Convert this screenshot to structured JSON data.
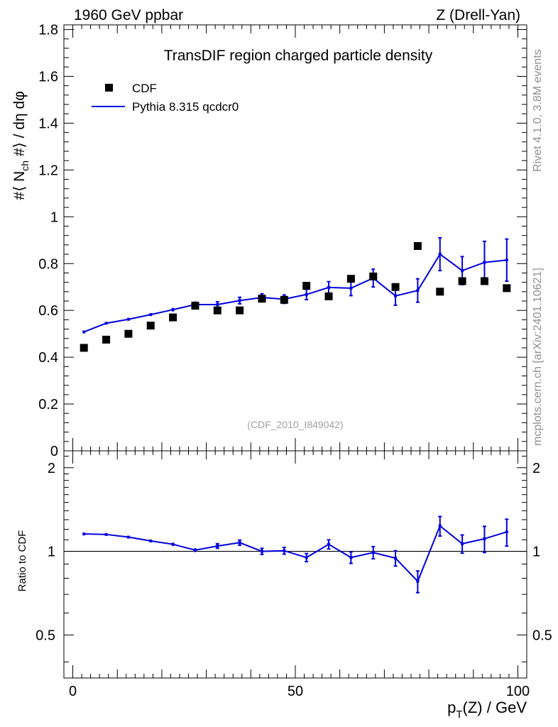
{
  "header": {
    "left": "1960 GeV ppbar",
    "right": "Z (Drell-Yan)"
  },
  "side": {
    "rivet": "Rivet 4.1.0,  3.8M events",
    "mcplots": "mcplots.cern.ch [arXiv:2401.10621]"
  },
  "chart_data": {
    "type": "line",
    "title": "TransDIF region charged particle density",
    "watermark": "(CDF_2010_I849042)",
    "xlabel": {
      "p": "p",
      "sub": "T",
      "rest": "(Z) / GeV"
    },
    "ylabel": "#⟨ N  #⟩ / dη dφ",
    "ylabel_parts": {
      "pre": "#⟨ N",
      "sub": "ch",
      "post": " #⟩ / dη dφ"
    },
    "ratio_ylabel": "Ratio to CDF",
    "xlim": [
      -2,
      102
    ],
    "ylim": [
      0,
      1.82
    ],
    "ratio_ylim": [
      0.35,
      2.3
    ],
    "xticks": [
      "0",
      "50",
      "100"
    ],
    "xtick_values": [
      0,
      50,
      100
    ],
    "yticks": [
      "0",
      "0.2",
      "0.4",
      "0.6",
      "0.8",
      "1",
      "1.2",
      "1.4",
      "1.6",
      "1.8"
    ],
    "ytick_values": [
      0,
      0.2,
      0.4,
      0.6,
      0.8,
      1.0,
      1.2,
      1.4,
      1.6,
      1.8
    ],
    "ratio_yticks": [
      "0.5",
      "1",
      "2"
    ],
    "ratio_ytick_values": [
      0.5,
      1,
      2
    ],
    "legend": {
      "position": "top-left",
      "data_label": "CDF",
      "mc_label": "Pythia 8.315 qcdcr0"
    },
    "colors": {
      "mc": "#0000e0",
      "data": "#000000",
      "axis": "#000000",
      "muted": "#909090"
    },
    "x": [
      2.5,
      7.5,
      12.5,
      17.5,
      22.5,
      27.5,
      32.5,
      37.5,
      42.5,
      47.5,
      52.5,
      57.5,
      62.5,
      67.5,
      72.5,
      77.5,
      82.5,
      87.5,
      92.5,
      97.5
    ],
    "series": [
      {
        "name": "CDF",
        "values": [
          0.44,
          0.475,
          0.5,
          0.535,
          0.57,
          0.62,
          0.6,
          0.6,
          0.65,
          0.645,
          0.705,
          0.66,
          0.735,
          0.745,
          0.7,
          0.875,
          0.68,
          0.725,
          0.725,
          0.695
        ]
      },
      {
        "name": "Pythia 8.315 qcdcr0",
        "values": [
          0.508,
          0.545,
          0.562,
          0.582,
          0.603,
          0.625,
          0.625,
          0.642,
          0.655,
          0.648,
          0.668,
          0.698,
          0.695,
          0.738,
          0.662,
          0.685,
          0.84,
          0.77,
          0.805,
          0.815
        ],
        "errors": [
          0.004,
          0.004,
          0.005,
          0.006,
          0.008,
          0.01,
          0.012,
          0.014,
          0.016,
          0.018,
          0.022,
          0.025,
          0.032,
          0.038,
          0.04,
          0.05,
          0.07,
          0.06,
          0.09,
          0.09
        ]
      }
    ],
    "ratio": {
      "values": [
        1.155,
        1.15,
        1.125,
        1.09,
        1.06,
        1.01,
        1.045,
        1.075,
        1.0,
        1.005,
        0.95,
        1.06,
        0.95,
        0.99,
        0.945,
        0.78,
        1.235,
        1.065,
        1.11,
        1.175
      ],
      "errors": [
        0.008,
        0.008,
        0.01,
        0.012,
        0.015,
        0.017,
        0.02,
        0.023,
        0.025,
        0.028,
        0.032,
        0.04,
        0.045,
        0.05,
        0.06,
        0.07,
        0.1,
        0.08,
        0.12,
        0.13
      ]
    }
  }
}
